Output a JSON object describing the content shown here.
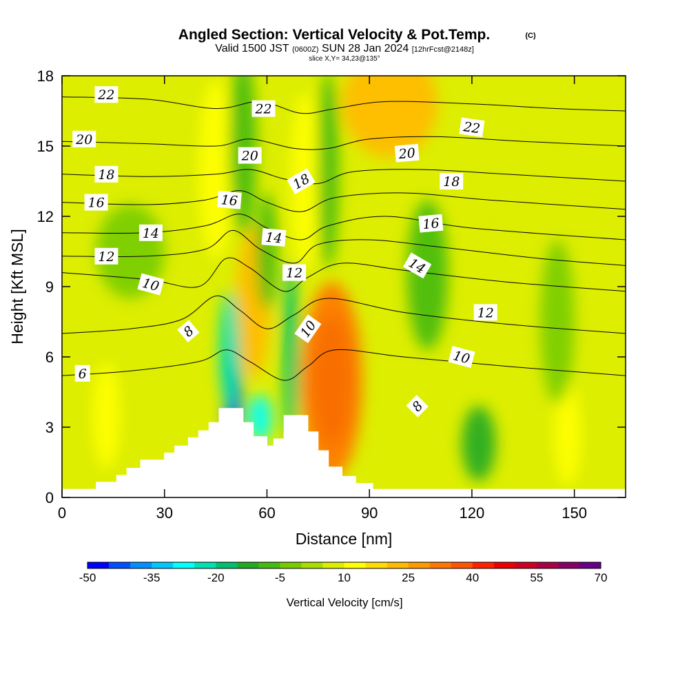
{
  "chart_data": {
    "type": "heatmap",
    "title": "Angled Section: Vertical Velocity & Pot.Temp.",
    "title_mark": "(C)",
    "subtitle": {
      "valid": "Valid 1500 JST",
      "utc": "(0600Z)",
      "date": "SUN 28 Jan 2024",
      "forecast": "[12hrFcst@2148z]"
    },
    "slice_label": "slice X,Y= 34,23@135°",
    "xlabel": "Distance [nm]",
    "ylabel": "Height [Kft MSL]",
    "xlim": [
      0,
      165
    ],
    "ylim": [
      0,
      18
    ],
    "x_ticks": [
      0,
      30,
      60,
      90,
      120,
      150
    ],
    "y_ticks": [
      0,
      3,
      6,
      9,
      12,
      15,
      18
    ],
    "colorbar": {
      "title": "Vertical Velocity [cm/s]",
      "min": -50,
      "max": 70,
      "step": 5,
      "tick_labels": [
        -50,
        -35,
        -20,
        -5,
        10,
        25,
        40,
        55,
        70
      ],
      "colors": [
        "#0000ff",
        "#0050ff",
        "#0090ff",
        "#00c8ff",
        "#00ffff",
        "#00e0b0",
        "#00c070",
        "#22aa22",
        "#44bb10",
        "#77cc00",
        "#aadd00",
        "#ddee00",
        "#ffff00",
        "#ffdd00",
        "#ffbb00",
        "#ff9900",
        "#ff7700",
        "#ff5500",
        "#ff2200",
        "#ee0000",
        "#cc0022",
        "#aa0044",
        "#880066",
        "#660088"
      ]
    },
    "terrain": [
      [
        0,
        0.35
      ],
      [
        10,
        0.35
      ],
      [
        10,
        0.65
      ],
      [
        16,
        0.65
      ],
      [
        16,
        0.95
      ],
      [
        19,
        0.95
      ],
      [
        19,
        1.25
      ],
      [
        23,
        1.25
      ],
      [
        23,
        1.6
      ],
      [
        30,
        1.6
      ],
      [
        30,
        1.9
      ],
      [
        33,
        1.9
      ],
      [
        33,
        2.2
      ],
      [
        37,
        2.2
      ],
      [
        37,
        2.55
      ],
      [
        40,
        2.55
      ],
      [
        40,
        2.85
      ],
      [
        43,
        2.85
      ],
      [
        43,
        3.2
      ],
      [
        46,
        3.2
      ],
      [
        46,
        3.8
      ],
      [
        53,
        3.8
      ],
      [
        53,
        3.2
      ],
      [
        56,
        3.2
      ],
      [
        56,
        2.6
      ],
      [
        60,
        2.6
      ],
      [
        60,
        2.2
      ],
      [
        62,
        2.2
      ],
      [
        62,
        2.5
      ],
      [
        65,
        2.5
      ],
      [
        65,
        3.5
      ],
      [
        72,
        3.5
      ],
      [
        72,
        2.8
      ],
      [
        75,
        2.8
      ],
      [
        75,
        2
      ],
      [
        78,
        2
      ],
      [
        78,
        1.3
      ],
      [
        82,
        1.3
      ],
      [
        82,
        0.9
      ],
      [
        86,
        0.9
      ],
      [
        86,
        0.6
      ],
      [
        91,
        0.6
      ],
      [
        91,
        0.35
      ],
      [
        165,
        0.35
      ]
    ],
    "theta_contours": [
      {
        "label": "6",
        "points": [
          [
            0,
            5.2
          ],
          [
            20,
            5.4
          ],
          [
            40,
            5.8
          ],
          [
            48,
            6.3
          ],
          [
            55,
            5.8
          ],
          [
            65,
            5.0
          ],
          [
            72,
            5.6
          ],
          [
            80,
            6.3
          ],
          [
            100,
            6.0
          ],
          [
            130,
            5.6
          ],
          [
            165,
            5.2
          ]
        ]
      },
      {
        "label": "8",
        "points": [
          [
            0,
            7.0
          ],
          [
            20,
            7.2
          ],
          [
            35,
            7.6
          ],
          [
            45,
            8.6
          ],
          [
            52,
            8.0
          ],
          [
            60,
            7.2
          ],
          [
            68,
            7.8
          ],
          [
            78,
            8.5
          ],
          [
            100,
            7.9
          ],
          [
            130,
            7.4
          ],
          [
            165,
            7.0
          ]
        ]
      },
      {
        "label": "10",
        "points": [
          [
            0,
            9.6
          ],
          [
            25,
            9.3
          ],
          [
            40,
            9.0
          ],
          [
            48,
            10.2
          ],
          [
            55,
            9.8
          ],
          [
            65,
            8.8
          ],
          [
            72,
            9.4
          ],
          [
            82,
            10.0
          ],
          [
            100,
            9.7
          ],
          [
            130,
            9.2
          ],
          [
            165,
            8.8
          ]
        ]
      },
      {
        "label": "12",
        "points": [
          [
            0,
            10.3
          ],
          [
            25,
            10.3
          ],
          [
            42,
            10.6
          ],
          [
            50,
            11.4
          ],
          [
            58,
            10.6
          ],
          [
            68,
            10.0
          ],
          [
            75,
            10.8
          ],
          [
            90,
            11.0
          ],
          [
            110,
            10.7
          ],
          [
            140,
            10.2
          ],
          [
            165,
            9.9
          ]
        ]
      },
      {
        "label": "14",
        "points": [
          [
            0,
            11.3
          ],
          [
            25,
            11.3
          ],
          [
            42,
            11.6
          ],
          [
            52,
            12.1
          ],
          [
            60,
            11.5
          ],
          [
            70,
            11.0
          ],
          [
            78,
            11.6
          ],
          [
            95,
            12.0
          ],
          [
            120,
            11.5
          ],
          [
            165,
            11.0
          ]
        ]
      },
      {
        "label": "16",
        "points": [
          [
            0,
            12.6
          ],
          [
            25,
            12.5
          ],
          [
            42,
            12.7
          ],
          [
            52,
            13.1
          ],
          [
            60,
            12.6
          ],
          [
            70,
            12.2
          ],
          [
            80,
            12.8
          ],
          [
            100,
            13.0
          ],
          [
            125,
            12.7
          ],
          [
            165,
            12.3
          ]
        ]
      },
      {
        "label": "18",
        "points": [
          [
            0,
            13.8
          ],
          [
            25,
            13.7
          ],
          [
            45,
            13.8
          ],
          [
            55,
            14.0
          ],
          [
            65,
            13.6
          ],
          [
            75,
            13.4
          ],
          [
            85,
            13.9
          ],
          [
            105,
            14.0
          ],
          [
            130,
            13.8
          ],
          [
            165,
            13.5
          ]
        ]
      },
      {
        "label": "20",
        "points": [
          [
            0,
            15.2
          ],
          [
            25,
            15.1
          ],
          [
            45,
            15.0
          ],
          [
            55,
            15.3
          ],
          [
            68,
            14.9
          ],
          [
            78,
            14.9
          ],
          [
            90,
            15.3
          ],
          [
            110,
            15.4
          ],
          [
            135,
            15.2
          ],
          [
            165,
            15.0
          ]
        ]
      },
      {
        "label": "22",
        "points": [
          [
            0,
            17.1
          ],
          [
            25,
            17.0
          ],
          [
            45,
            16.6
          ],
          [
            58,
            16.9
          ],
          [
            70,
            16.4
          ],
          [
            80,
            16.6
          ],
          [
            95,
            16.9
          ],
          [
            120,
            16.8
          ],
          [
            145,
            16.6
          ],
          [
            165,
            16.5
          ]
        ]
      }
    ],
    "contour_labels": [
      {
        "text": "22",
        "x": 13,
        "y": 17.2,
        "angle": 0
      },
      {
        "text": "22",
        "x": 59,
        "y": 16.6,
        "angle": 0
      },
      {
        "text": "22",
        "x": 120,
        "y": 15.8,
        "angle": 8
      },
      {
        "text": "20",
        "x": 6.5,
        "y": 15.3,
        "angle": 0
      },
      {
        "text": "20",
        "x": 55,
        "y": 14.6,
        "angle": 0
      },
      {
        "text": "20",
        "x": 101,
        "y": 14.7,
        "angle": -5
      },
      {
        "text": "18",
        "x": 13,
        "y": 13.8,
        "angle": 0
      },
      {
        "text": "18",
        "x": 70,
        "y": 13.5,
        "angle": -30
      },
      {
        "text": "18",
        "x": 114,
        "y": 13.5,
        "angle": 0
      },
      {
        "text": "16",
        "x": 10,
        "y": 12.6,
        "angle": 0
      },
      {
        "text": "16",
        "x": 49,
        "y": 12.7,
        "angle": 5
      },
      {
        "text": "16",
        "x": 108,
        "y": 11.7,
        "angle": -5
      },
      {
        "text": "14",
        "x": 26,
        "y": 11.3,
        "angle": 0
      },
      {
        "text": "14",
        "x": 62,
        "y": 11.1,
        "angle": 5
      },
      {
        "text": "14",
        "x": 104,
        "y": 9.9,
        "angle": 30
      },
      {
        "text": "12",
        "x": 13,
        "y": 10.3,
        "angle": 0
      },
      {
        "text": "12",
        "x": 68,
        "y": 9.6,
        "angle": 0
      },
      {
        "text": "12",
        "x": 124,
        "y": 7.9,
        "angle": 0
      },
      {
        "text": "10",
        "x": 26,
        "y": 9.1,
        "angle": 15
      },
      {
        "text": "10",
        "x": 72,
        "y": 7.2,
        "angle": -55
      },
      {
        "text": "10",
        "x": 117,
        "y": 6.0,
        "angle": 15
      },
      {
        "text": "8",
        "x": 37,
        "y": 7.1,
        "angle": -40
      },
      {
        "text": "8",
        "x": 104,
        "y": 3.9,
        "angle": -45
      },
      {
        "text": "6",
        "x": 6,
        "y": 5.3,
        "angle": 0
      }
    ],
    "velocity_features": [
      {
        "x": 79,
        "y": 5.0,
        "rx": 6,
        "ry": 2.8,
        "value": 58
      },
      {
        "x": 79,
        "y": 5.0,
        "rx": 9,
        "ry": 4.2,
        "value": 30
      },
      {
        "x": 56,
        "y": 8.3,
        "rx": 5,
        "ry": 3.2,
        "value": 22
      },
      {
        "x": 50,
        "y": 4.5,
        "rx": 2.5,
        "ry": 2.3,
        "value": -45
      },
      {
        "x": 49,
        "y": 6.3,
        "rx": 3,
        "ry": 2.5,
        "value": -25
      },
      {
        "x": 67,
        "y": 6.2,
        "rx": 2.3,
        "ry": 3.8,
        "value": -18
      },
      {
        "x": 58,
        "y": 3.4,
        "rx": 3.5,
        "ry": 1.0,
        "value": -28
      },
      {
        "x": 96,
        "y": 16.8,
        "rx": 14,
        "ry": 2.3,
        "value": 22
      },
      {
        "x": 71,
        "y": 13.5,
        "rx": 4,
        "ry": 3.8,
        "value": 12
      },
      {
        "x": 45,
        "y": 14.0,
        "rx": 5,
        "ry": 3.8,
        "value": 12
      },
      {
        "x": 53,
        "y": 15.0,
        "rx": 4,
        "ry": 3.8,
        "value": -6
      },
      {
        "x": 78,
        "y": 14.0,
        "rx": 3,
        "ry": 4.2,
        "value": -6
      },
      {
        "x": 13,
        "y": 3.5,
        "rx": 4,
        "ry": 2.3,
        "value": 12
      },
      {
        "x": 148,
        "y": 2.7,
        "rx": 4,
        "ry": 2.2,
        "value": 12
      },
      {
        "x": 122,
        "y": 2.3,
        "rx": 5,
        "ry": 1.6,
        "value": -12
      },
      {
        "x": 107,
        "y": 9.5,
        "rx": 6,
        "ry": 3.2,
        "value": -8
      },
      {
        "x": 145,
        "y": 7.5,
        "rx": 5,
        "ry": 3.5,
        "value": -5
      },
      {
        "x": 60,
        "y": 10.5,
        "rx": 3,
        "ry": 2.5,
        "value": -10
      },
      {
        "x": 20,
        "y": 10.5,
        "rx": 10,
        "ry": 2.0,
        "value": -5
      },
      {
        "x": 135,
        "y": 13.5,
        "rx": 12,
        "ry": 1.8,
        "value": 8
      }
    ]
  }
}
